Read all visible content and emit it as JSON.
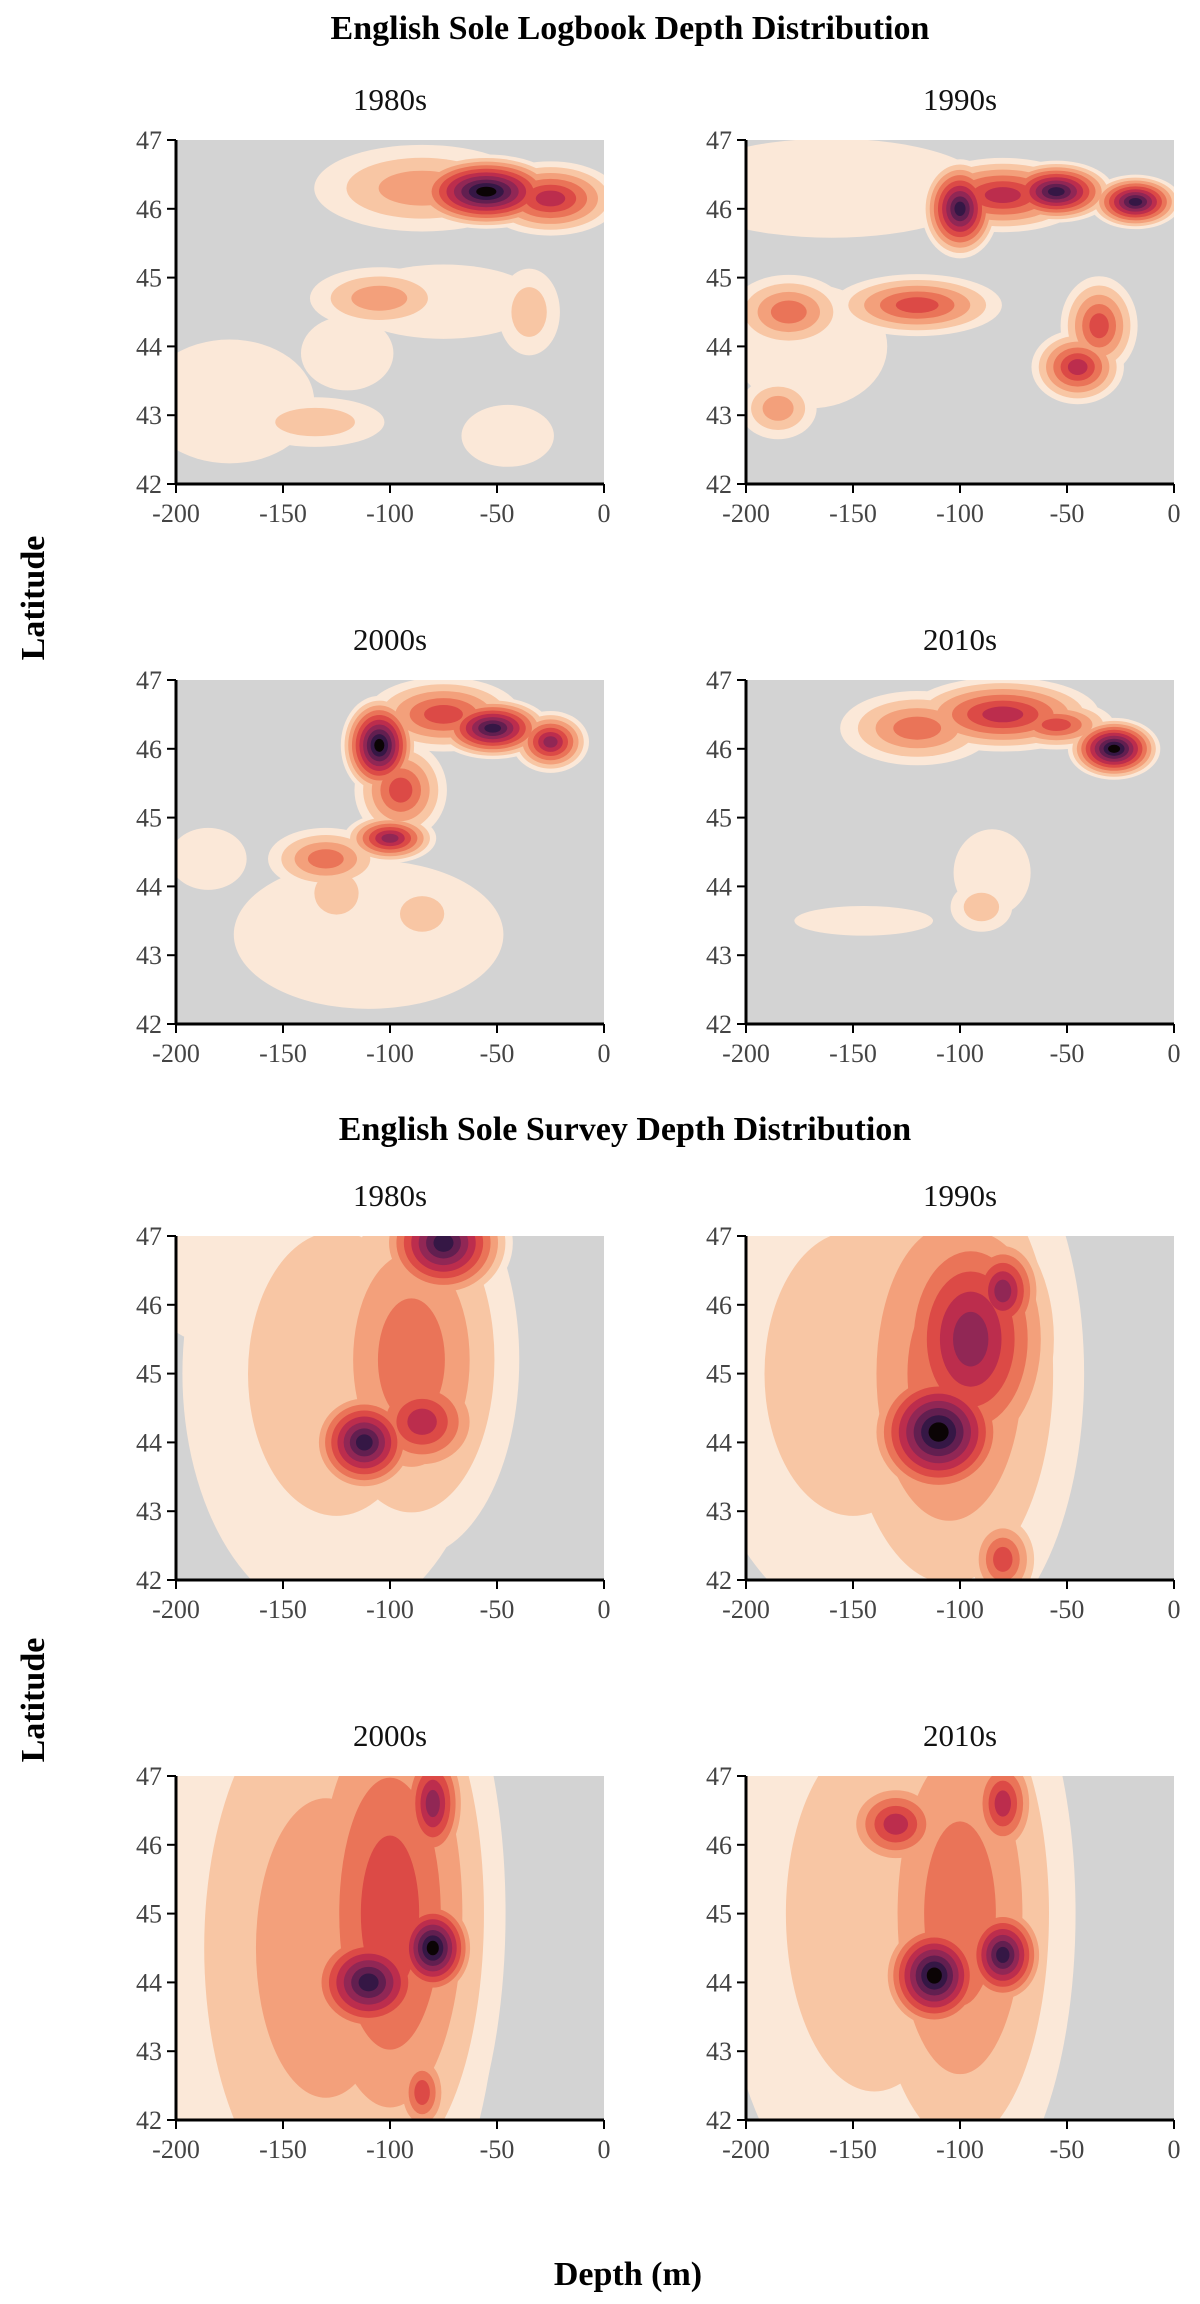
{
  "colors": {
    "panel_background": "#d3d3d3",
    "density_levels": [
      "#fbe8d8",
      "#f8c6a4",
      "#f3a07b",
      "#ea7458",
      "#dc4a46",
      "#bc2d4d",
      "#912755",
      "#621f50",
      "#351745",
      "#0b0405"
    ]
  },
  "section_titles": [
    "English Sole Logbook Depth Distribution",
    "English Sole Survey Depth Distribution"
  ],
  "axes": {
    "ylabel": "Latitude",
    "xlabel": "Depth (m)"
  },
  "chart_data": [
    {
      "type": "heatmap",
      "section": "English Sole Logbook Depth Distribution",
      "title": "1980s",
      "xlim": [
        -200,
        0
      ],
      "ylim": [
        42,
        47
      ],
      "xticks": [
        "-200",
        "-150",
        "-100",
        "-50",
        "0"
      ],
      "yticks": [
        "42",
        "43",
        "44",
        "45",
        "46",
        "47"
      ],
      "density_peaks": [
        {
          "x": -55,
          "y": 46.25,
          "level": 10,
          "sx": 20,
          "sy": 0.3
        },
        {
          "x": -25,
          "y": 46.15,
          "level": 6,
          "sx": 18,
          "sy": 0.3
        },
        {
          "x": -85,
          "y": 46.3,
          "level": 3,
          "sx": 28,
          "sy": 0.35
        },
        {
          "x": -105,
          "y": 44.7,
          "level": 3,
          "sx": 18,
          "sy": 0.25
        },
        {
          "x": -75,
          "y": 44.65,
          "level": 1,
          "sx": 25,
          "sy": 0.3
        },
        {
          "x": -35,
          "y": 44.5,
          "level": 2,
          "sx": 8,
          "sy": 0.35
        },
        {
          "x": -120,
          "y": 43.9,
          "level": 1,
          "sx": 12,
          "sy": 0.3
        },
        {
          "x": -175,
          "y": 43.2,
          "level": 1,
          "sx": 22,
          "sy": 0.5
        },
        {
          "x": -135,
          "y": 42.9,
          "level": 2,
          "sx": 18,
          "sy": 0.2
        },
        {
          "x": -45,
          "y": 42.7,
          "level": 1,
          "sx": 12,
          "sy": 0.25
        }
      ]
    },
    {
      "type": "heatmap",
      "section": "English Sole Logbook Depth Distribution",
      "title": "1990s",
      "xlim": [
        -200,
        0
      ],
      "ylim": [
        42,
        47
      ],
      "xticks": [
        "-200",
        "-150",
        "-100",
        "-50",
        "0"
      ],
      "yticks": [
        "42",
        "43",
        "44",
        "45",
        "46",
        "47"
      ],
      "density_peaks": [
        {
          "x": -100,
          "y": 46.0,
          "level": 9,
          "sx": 10,
          "sy": 0.4
        },
        {
          "x": -55,
          "y": 46.25,
          "level": 9,
          "sx": 15,
          "sy": 0.25
        },
        {
          "x": -18,
          "y": 46.1,
          "level": 9,
          "sx": 12,
          "sy": 0.22
        },
        {
          "x": -80,
          "y": 46.2,
          "level": 6,
          "sx": 22,
          "sy": 0.3
        },
        {
          "x": -160,
          "y": 46.3,
          "level": 1,
          "sx": 40,
          "sy": 0.4
        },
        {
          "x": -120,
          "y": 44.6,
          "level": 5,
          "sx": 22,
          "sy": 0.25
        },
        {
          "x": -180,
          "y": 44.5,
          "level": 4,
          "sx": 15,
          "sy": 0.3
        },
        {
          "x": -35,
          "y": 44.3,
          "level": 5,
          "sx": 10,
          "sy": 0.4
        },
        {
          "x": -45,
          "y": 43.7,
          "level": 6,
          "sx": 12,
          "sy": 0.3
        },
        {
          "x": -185,
          "y": 43.1,
          "level": 3,
          "sx": 10,
          "sy": 0.25
        },
        {
          "x": -170,
          "y": 44.0,
          "level": 1,
          "sx": 20,
          "sy": 0.5
        }
      ]
    },
    {
      "type": "heatmap",
      "section": "English Sole Logbook Depth Distribution",
      "title": "2000s",
      "xlim": [
        -200,
        0
      ],
      "ylim": [
        42,
        47
      ],
      "xticks": [
        "-200",
        "-150",
        "-100",
        "-50",
        "0"
      ],
      "yticks": [
        "42",
        "43",
        "44",
        "45",
        "46",
        "47"
      ],
      "density_peaks": [
        {
          "x": -105,
          "y": 46.05,
          "level": 10,
          "sx": 10,
          "sy": 0.4
        },
        {
          "x": -52,
          "y": 46.3,
          "level": 9,
          "sx": 15,
          "sy": 0.25
        },
        {
          "x": -25,
          "y": 46.1,
          "level": 7,
          "sx": 10,
          "sy": 0.25
        },
        {
          "x": -75,
          "y": 46.5,
          "level": 5,
          "sx": 20,
          "sy": 0.3
        },
        {
          "x": -95,
          "y": 45.4,
          "level": 5,
          "sx": 12,
          "sy": 0.4
        },
        {
          "x": -100,
          "y": 44.7,
          "level": 7,
          "sx": 12,
          "sy": 0.2
        },
        {
          "x": -130,
          "y": 44.4,
          "level": 4,
          "sx": 15,
          "sy": 0.25
        },
        {
          "x": -125,
          "y": 43.9,
          "level": 2,
          "sx": 10,
          "sy": 0.3
        },
        {
          "x": -110,
          "y": 43.3,
          "level": 1,
          "sx": 35,
          "sy": 0.6
        },
        {
          "x": -185,
          "y": 44.4,
          "level": 1,
          "sx": 10,
          "sy": 0.25
        },
        {
          "x": -85,
          "y": 43.6,
          "level": 2,
          "sx": 10,
          "sy": 0.25
        }
      ]
    },
    {
      "type": "heatmap",
      "section": "English Sole Logbook Depth Distribution",
      "title": "2010s",
      "xlim": [
        -200,
        0
      ],
      "ylim": [
        42,
        47
      ],
      "xticks": [
        "-200",
        "-150",
        "-100",
        "-50",
        "0"
      ],
      "yticks": [
        "42",
        "43",
        "44",
        "45",
        "46",
        "47"
      ],
      "density_peaks": [
        {
          "x": -28,
          "y": 46.0,
          "level": 10,
          "sx": 12,
          "sy": 0.25
        },
        {
          "x": -80,
          "y": 46.5,
          "level": 6,
          "sx": 25,
          "sy": 0.3
        },
        {
          "x": -55,
          "y": 46.35,
          "level": 5,
          "sx": 15,
          "sy": 0.2
        },
        {
          "x": -120,
          "y": 46.3,
          "level": 4,
          "sx": 20,
          "sy": 0.3
        },
        {
          "x": -85,
          "y": 44.2,
          "level": 1,
          "sx": 10,
          "sy": 0.35
        },
        {
          "x": -90,
          "y": 43.7,
          "level": 2,
          "sx": 8,
          "sy": 0.2
        },
        {
          "x": -145,
          "y": 43.5,
          "level": 1,
          "sx": 18,
          "sy": 0.12
        }
      ]
    },
    {
      "type": "heatmap",
      "section": "English Sole Survey Depth Distribution",
      "title": "1980s",
      "xlim": [
        -200,
        0
      ],
      "ylim": [
        42,
        47
      ],
      "xticks": [
        "-200",
        "-150",
        "-100",
        "-50",
        "0"
      ],
      "yticks": [
        "42",
        "43",
        "44",
        "45",
        "46",
        "47"
      ],
      "density_peaks": [
        {
          "x": -112,
          "y": 44.0,
          "level": 9,
          "sx": 15,
          "sy": 0.45
        },
        {
          "x": -85,
          "y": 44.3,
          "level": 6,
          "sx": 18,
          "sy": 0.5
        },
        {
          "x": -75,
          "y": 46.9,
          "level": 9,
          "sx": 18,
          "sy": 0.5
        },
        {
          "x": -90,
          "y": 45.2,
          "level": 4,
          "sx": 28,
          "sy": 1.6
        },
        {
          "x": -125,
          "y": 45.0,
          "level": 2,
          "sx": 40,
          "sy": 2.0
        },
        {
          "x": -180,
          "y": 46.5,
          "level": 1,
          "sx": 20,
          "sy": 0.6
        }
      ]
    },
    {
      "type": "heatmap",
      "section": "English Sole Survey Depth Distribution",
      "title": "1990s",
      "xlim": [
        -200,
        0
      ],
      "ylim": [
        42,
        47
      ],
      "xticks": [
        "-200",
        "-150",
        "-100",
        "-50",
        "0"
      ],
      "yticks": [
        "42",
        "43",
        "44",
        "45",
        "46",
        "47"
      ],
      "density_peaks": [
        {
          "x": -110,
          "y": 44.15,
          "level": 10,
          "sx": 20,
          "sy": 0.6
        },
        {
          "x": -95,
          "y": 45.5,
          "level": 7,
          "sx": 25,
          "sy": 1.2
        },
        {
          "x": -80,
          "y": 46.2,
          "level": 7,
          "sx": 12,
          "sy": 0.5
        },
        {
          "x": -105,
          "y": 45.0,
          "level": 4,
          "sx": 35,
          "sy": 2.2
        },
        {
          "x": -150,
          "y": 45.0,
          "level": 2,
          "sx": 40,
          "sy": 2.0
        },
        {
          "x": -80,
          "y": 42.3,
          "level": 5,
          "sx": 10,
          "sy": 0.4
        }
      ]
    },
    {
      "type": "heatmap",
      "section": "English Sole Survey Depth Distribution",
      "title": "2000s",
      "xlim": [
        -200,
        0
      ],
      "ylim": [
        42,
        47
      ],
      "xticks": [
        "-200",
        "-150",
        "-100",
        "-50",
        "0"
      ],
      "yticks": [
        "42",
        "43",
        "44",
        "45",
        "46",
        "47"
      ],
      "density_peaks": [
        {
          "x": -80,
          "y": 44.5,
          "level": 10,
          "sx": 12,
          "sy": 0.45
        },
        {
          "x": -110,
          "y": 44.0,
          "level": 9,
          "sx": 18,
          "sy": 0.5
        },
        {
          "x": -80,
          "y": 46.6,
          "level": 7,
          "sx": 10,
          "sy": 0.6
        },
        {
          "x": -100,
          "y": 45.0,
          "level": 5,
          "sx": 30,
          "sy": 2.5
        },
        {
          "x": -130,
          "y": 44.5,
          "level": 3,
          "sx": 45,
          "sy": 3.0
        },
        {
          "x": -170,
          "y": 44.5,
          "level": 1,
          "sx": 35,
          "sy": 3.0
        },
        {
          "x": -85,
          "y": 42.4,
          "level": 5,
          "sx": 8,
          "sy": 0.4
        }
      ]
    },
    {
      "type": "heatmap",
      "section": "English Sole Survey Depth Distribution",
      "title": "2010s",
      "xlim": [
        -200,
        0
      ],
      "ylim": [
        42,
        47
      ],
      "xticks": [
        "-200",
        "-150",
        "-100",
        "-50",
        "0"
      ],
      "yticks": [
        "42",
        "43",
        "44",
        "45",
        "46",
        "47"
      ],
      "density_peaks": [
        {
          "x": -112,
          "y": 44.1,
          "level": 10,
          "sx": 15,
          "sy": 0.5
        },
        {
          "x": -80,
          "y": 44.4,
          "level": 9,
          "sx": 12,
          "sy": 0.45
        },
        {
          "x": -130,
          "y": 46.3,
          "level": 6,
          "sx": 15,
          "sy": 0.4
        },
        {
          "x": -80,
          "y": 46.6,
          "level": 6,
          "sx": 10,
          "sy": 0.5
        },
        {
          "x": -100,
          "y": 45.0,
          "level": 4,
          "sx": 30,
          "sy": 2.4
        },
        {
          "x": -140,
          "y": 45.0,
          "level": 2,
          "sx": 40,
          "sy": 2.5
        }
      ]
    }
  ]
}
